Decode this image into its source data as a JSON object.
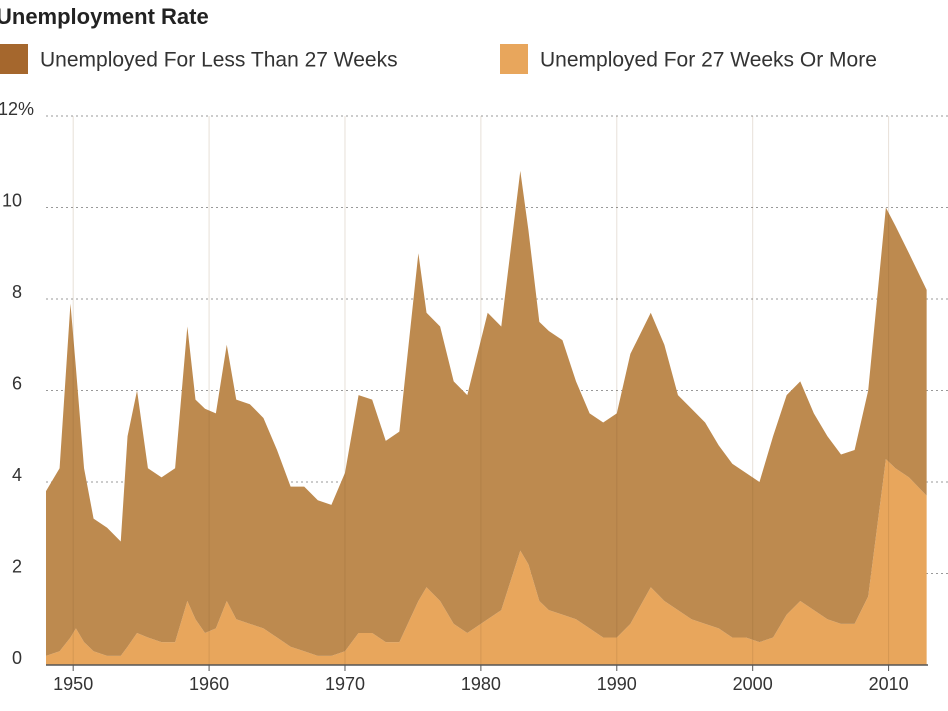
{
  "chart_data": {
    "type": "stacked-area",
    "title": "Unemployment Rate",
    "x": [
      1948,
      1949,
      1949.8,
      1950.2,
      1950.8,
      1951.5,
      1952.5,
      1953.5,
      1954,
      1954.7,
      1955.5,
      1956.5,
      1957.5,
      1958.4,
      1959,
      1959.7,
      1960.5,
      1961.3,
      1962,
      1963,
      1964,
      1965,
      1966,
      1967,
      1968,
      1969,
      1970,
      1971,
      1972,
      1973,
      1974,
      1975.4,
      1976,
      1977,
      1978,
      1979,
      1980.5,
      1981.5,
      1982.9,
      1983.5,
      1984.3,
      1985,
      1986,
      1987,
      1988,
      1989,
      1990,
      1991,
      1992.5,
      1993.5,
      1994.5,
      1995.5,
      1996.5,
      1997.5,
      1998.5,
      1999.5,
      2000.5,
      2001.5,
      2002.5,
      2003.5,
      2004.5,
      2005.5,
      2006.5,
      2007.5,
      2008.5,
      2009.8,
      2010.5,
      2011.5,
      2012.8
    ],
    "series": [
      {
        "name": "Unemployed For Less Than 27 Weeks",
        "color": "#bd8a4f",
        "legend_color": "#a5672d",
        "values": [
          3.6,
          4.0,
          7.3,
          5.7,
          3.8,
          2.9,
          2.8,
          2.5,
          4.6,
          5.3,
          3.7,
          3.6,
          3.8,
          6.0,
          4.8,
          4.9,
          4.7,
          5.6,
          4.8,
          4.8,
          4.6,
          4.1,
          3.5,
          3.6,
          3.4,
          3.3,
          3.9,
          5.2,
          5.1,
          4.4,
          4.6,
          7.6,
          6.0,
          6.0,
          5.3,
          5.2,
          6.7,
          6.2,
          8.3,
          7.3,
          6.1,
          6.1,
          6.0,
          5.2,
          4.7,
          4.7,
          4.9,
          5.9,
          6.0,
          5.6,
          4.7,
          4.6,
          4.4,
          4.0,
          3.8,
          3.6,
          3.5,
          4.4,
          4.8,
          4.8,
          4.3,
          4.0,
          3.7,
          3.8,
          4.5,
          5.5,
          5.3,
          4.9,
          4.5
        ]
      },
      {
        "name": "Unemployed For 27 Weeks Or More",
        "color": "#e8a65c",
        "legend_color": "#e8a65c",
        "values": [
          0.2,
          0.3,
          0.6,
          0.8,
          0.5,
          0.3,
          0.2,
          0.2,
          0.4,
          0.7,
          0.6,
          0.5,
          0.5,
          1.4,
          1.0,
          0.7,
          0.8,
          1.4,
          1.0,
          0.9,
          0.8,
          0.6,
          0.4,
          0.3,
          0.2,
          0.2,
          0.3,
          0.7,
          0.7,
          0.5,
          0.5,
          1.4,
          1.7,
          1.4,
          0.9,
          0.7,
          1.0,
          1.2,
          2.5,
          2.2,
          1.4,
          1.2,
          1.1,
          1.0,
          0.8,
          0.6,
          0.6,
          0.9,
          1.7,
          1.4,
          1.2,
          1.0,
          0.9,
          0.8,
          0.6,
          0.6,
          0.5,
          0.6,
          1.1,
          1.4,
          1.2,
          1.0,
          0.9,
          0.9,
          1.5,
          4.5,
          4.3,
          4.1,
          3.7
        ]
      }
    ],
    "xlim": [
      1948,
      2012.9
    ],
    "xticks": [
      1950,
      1960,
      1970,
      1980,
      1990,
      2000,
      2010
    ],
    "ylim": [
      0,
      12
    ],
    "yticks": [
      0,
      2,
      4,
      6,
      8,
      10,
      {
        "value": 12,
        "label": "12%"
      }
    ],
    "grid": true
  }
}
